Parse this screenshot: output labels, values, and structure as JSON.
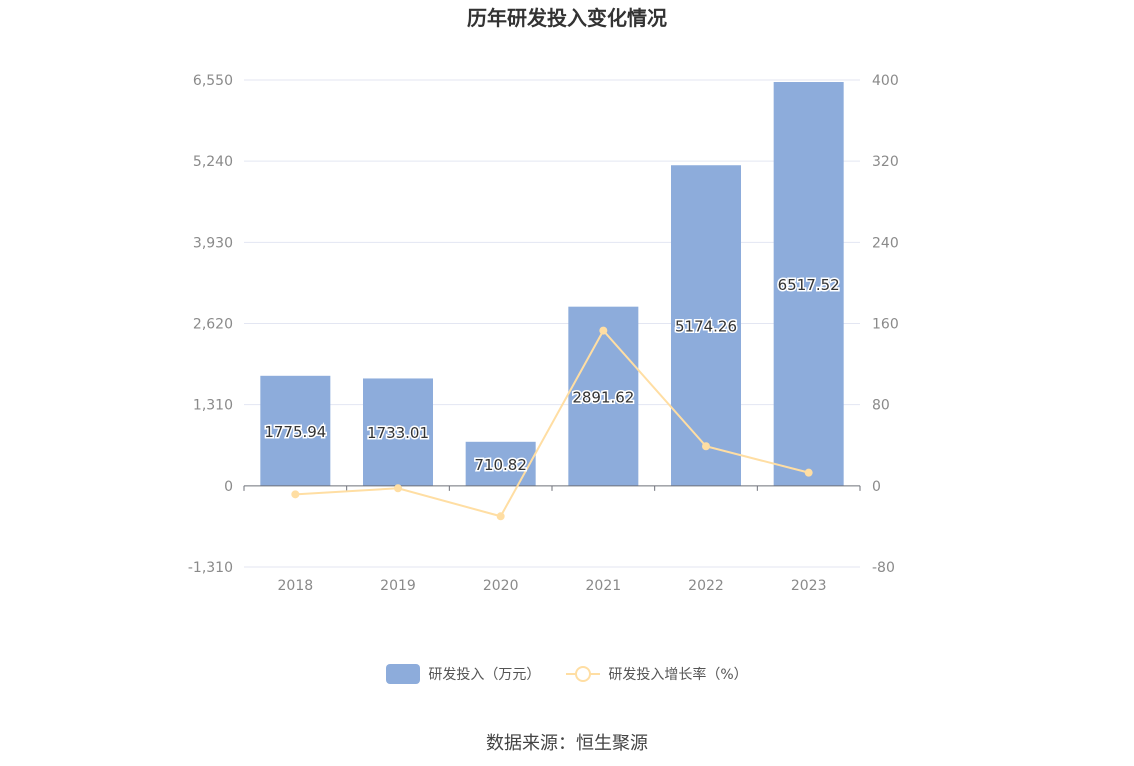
{
  "title": "历年研发投入变化情况",
  "source": "数据来源：恒生聚源",
  "colors": {
    "bar": "#8dacdb",
    "line": "#ffdea3",
    "grid": "#e3e6f2",
    "axis_text": "#8a8a8a"
  },
  "chart_data": {
    "type": "bar",
    "title": "历年研发投入变化情况",
    "categories": [
      "2018",
      "2019",
      "2020",
      "2021",
      "2022",
      "2023"
    ],
    "series": [
      {
        "name": "研发投入（万元）",
        "type": "bar",
        "axis": "left",
        "values": [
          1775.94,
          1733.01,
          710.82,
          2891.62,
          5174.26,
          6517.52
        ],
        "labels": [
          "1775.94",
          "1733.01",
          "710.82",
          "2891.62",
          "5174.26",
          "6517.52"
        ]
      },
      {
        "name": "研发投入增长率（%）",
        "type": "line",
        "axis": "right",
        "values": [
          -8.4,
          -2.4,
          -30.0,
          153.0,
          39.0,
          13.0
        ]
      }
    ],
    "y_left": {
      "min": -1310,
      "max": 6550,
      "ticks": [
        -1310,
        0,
        1310,
        2620,
        3930,
        5240,
        6550
      ],
      "tick_labels": [
        "-1,310",
        "0",
        "1,310",
        "2,620",
        "3,930",
        "5,240",
        "6,550"
      ]
    },
    "y_right": {
      "min": -80,
      "max": 400,
      "ticks": [
        -80,
        0,
        80,
        160,
        240,
        320,
        400
      ],
      "tick_labels": [
        "-80",
        "0",
        "80",
        "160",
        "240",
        "320",
        "400"
      ]
    },
    "grid": true,
    "legend": "bottom"
  }
}
